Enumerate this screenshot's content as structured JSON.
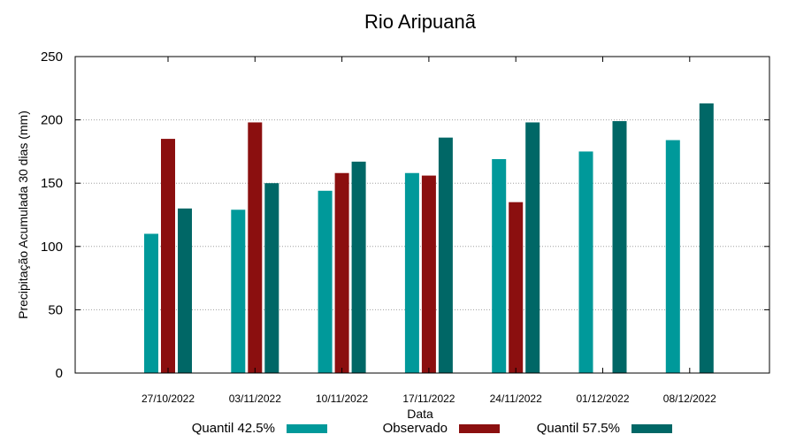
{
  "chart_data": {
    "type": "bar",
    "title": "Rio Aripuanã",
    "xlabel": "Data",
    "ylabel": "Precipitação Acumulada 30 dias (mm)",
    "ylim": [
      0,
      250
    ],
    "yticks": [
      0,
      50,
      100,
      150,
      200,
      250
    ],
    "grid": true,
    "legend_position": "bottom",
    "categories": [
      "27/10/2022",
      "03/11/2022",
      "10/11/2022",
      "17/11/2022",
      "24/11/2022",
      "01/12/2022",
      "08/12/2022"
    ],
    "series": [
      {
        "name": "Quantil 42.5%",
        "color": "#00999a",
        "values": [
          110,
          129,
          144,
          158,
          169,
          175,
          184
        ]
      },
      {
        "name": "Observado",
        "color": "#8b0f0f",
        "values": [
          185,
          198,
          158,
          156,
          135,
          null,
          null
        ]
      },
      {
        "name": "Quantil 57.5%",
        "color": "#006766",
        "values": [
          130,
          150,
          167,
          186,
          198,
          199,
          213
        ]
      }
    ]
  }
}
